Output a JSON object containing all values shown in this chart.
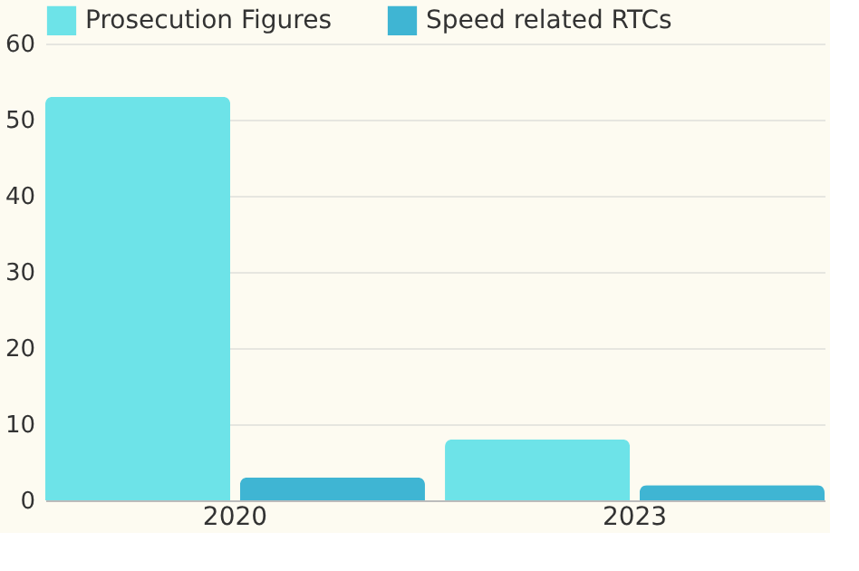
{
  "chart_data": {
    "type": "bar",
    "categories": [
      "2020",
      "2023"
    ],
    "series": [
      {
        "name": "Prosecution Figures",
        "color": "#6de3e8",
        "values": [
          53,
          8
        ]
      },
      {
        "name": "Speed related RTCs",
        "color": "#3fb5d3",
        "values": [
          3,
          2
        ]
      }
    ],
    "ylim": [
      0,
      60
    ],
    "yticks": [
      0,
      10,
      20,
      30,
      40,
      50,
      60
    ],
    "grid": "y",
    "legend": "top left"
  }
}
